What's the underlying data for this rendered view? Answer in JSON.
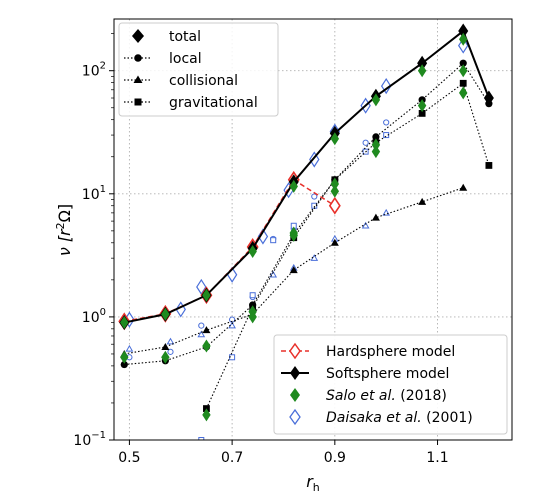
{
  "chart_data": {
    "type": "line",
    "xlabel_base": "r",
    "xlabel_sub": "h",
    "ylabel_main": "ν [r",
    "ylabel_sup": "2",
    "ylabel_end": "Ω]",
    "xlim": [
      0.47,
      1.245
    ],
    "ylim_log10": [
      -1,
      2.42
    ],
    "log_y": true,
    "grid": true,
    "x_ticks": [
      0.5,
      0.7,
      0.9,
      1.1
    ],
    "x_tick_labels": [
      "0.5",
      "0.7",
      "0.9",
      "1.1"
    ],
    "y_ticks": [
      {
        "value": 0.1,
        "base": "10",
        "exp": "−1"
      },
      {
        "value": 1,
        "base": "10",
        "exp": "0"
      },
      {
        "value": 10,
        "base": "10",
        "exp": "1"
      },
      {
        "value": 100,
        "base": "10",
        "exp": "2"
      }
    ],
    "legend_upper": {
      "placement": "top-left",
      "entries": [
        "total",
        "local",
        "collisional",
        "gravitational"
      ]
    },
    "legend_lower": {
      "placement": "bottom-right",
      "entries": [
        {
          "label": "Hardsphere model"
        },
        {
          "label": "Softsphere model"
        },
        {
          "italic": "Salo et al.",
          "rest": " (2018)"
        },
        {
          "italic": "Daisaka et al.",
          "rest": " (2001)"
        }
      ]
    },
    "colors": {
      "hardsphere": "#e8302a",
      "salo": "#1f8a1f",
      "daisaka": "#4a6fd9",
      "black": "#000000"
    },
    "series": [
      {
        "name": "total",
        "marker": "diamond",
        "x": [
          0.49,
          0.57,
          0.65,
          0.74,
          0.82,
          0.9,
          0.98,
          1.07,
          1.15,
          1.2
        ],
        "y": [
          0.9,
          1.05,
          1.5,
          3.6,
          12.5,
          31,
          62,
          115,
          210,
          60
        ]
      },
      {
        "name": "local",
        "marker": "circle",
        "x": [
          0.49,
          0.57,
          0.65,
          0.74,
          0.82,
          0.9,
          0.98,
          1.07,
          1.15,
          1.2
        ],
        "y": [
          0.41,
          0.44,
          0.57,
          1.25,
          4.7,
          13,
          29,
          58,
          115,
          54
        ]
      },
      {
        "name": "collisional",
        "marker": "triangle",
        "x": [
          0.49,
          0.57,
          0.65,
          0.74,
          0.82,
          0.9,
          0.98,
          1.07,
          1.15
        ],
        "y": [
          0.5,
          0.57,
          0.78,
          1.05,
          2.4,
          4.0,
          6.4,
          8.6,
          11.2
        ]
      },
      {
        "name": "gravitational",
        "marker": "square",
        "x": [
          0.65,
          0.74,
          0.82,
          0.9,
          0.98,
          1.07,
          1.15,
          1.2
        ],
        "y": [
          0.18,
          1.2,
          4.4,
          13,
          26,
          45,
          79,
          17
        ]
      },
      {
        "name": "Hardsphere model",
        "marker": "diamond-open",
        "x": [
          0.49,
          0.57,
          0.65,
          0.74,
          0.82,
          0.9
        ],
        "y": [
          0.92,
          1.06,
          1.5,
          3.7,
          13,
          8
        ]
      },
      {
        "name": "Salo et al. (2018)",
        "marker": "diamond-green",
        "x": [
          0.49,
          0.57,
          0.65,
          0.74,
          0.82,
          0.9,
          0.98,
          1.07,
          1.15,
          0.49,
          0.57,
          0.65,
          0.74,
          0.82,
          0.9,
          0.98,
          1.07,
          1.15,
          0.65,
          0.74,
          0.82,
          0.9,
          0.98,
          1.15
        ],
        "y": [
          0.9,
          1.05,
          1.5,
          3.4,
          11.5,
          28,
          58,
          100,
          180,
          0.47,
          0.47,
          0.58,
          1.1,
          4.6,
          10.5,
          22,
          52,
          100,
          0.16,
          1.0,
          4.8,
          12,
          25,
          66
        ]
      },
      {
        "name": "Daisaka et al. (2001)",
        "marker": "diamond-open-blue",
        "x": [
          0.5,
          0.6,
          0.64,
          0.7,
          0.76,
          0.81,
          0.86,
          0.9,
          0.96,
          1.0,
          1.15
        ],
        "y": [
          0.95,
          1.15,
          1.75,
          2.2,
          4.5,
          10.7,
          19,
          32,
          52,
          75,
          160
        ]
      },
      {
        "name": "Daisaka local",
        "marker": "circle-open-blue",
        "x": [
          0.5,
          0.58,
          0.64,
          0.7,
          0.74,
          0.78,
          0.82,
          0.86,
          0.9,
          0.96,
          1.0
        ],
        "y": [
          0.47,
          0.52,
          0.85,
          0.95,
          1.45,
          4.3,
          5.2,
          9.5,
          13,
          26,
          38
        ]
      },
      {
        "name": "Daisaka collisional",
        "marker": "triangle-open-blue",
        "x": [
          0.5,
          0.58,
          0.64,
          0.7,
          0.74,
          0.78,
          0.82,
          0.86,
          0.9,
          0.96,
          1.0
        ],
        "y": [
          0.55,
          0.63,
          0.72,
          0.85,
          1.05,
          2.2,
          2.5,
          3.0,
          4.3,
          5.5,
          7.0
        ]
      },
      {
        "name": "Daisaka gravitational",
        "marker": "square-open-blue",
        "x": [
          0.64,
          0.7,
          0.74,
          0.78,
          0.82,
          0.86,
          0.9,
          0.96,
          1.0
        ],
        "y": [
          0.1,
          0.47,
          1.5,
          4.2,
          5.5,
          8.0,
          12.5,
          22,
          30
        ]
      }
    ]
  }
}
